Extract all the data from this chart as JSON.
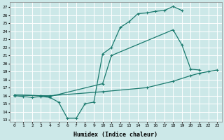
{
  "xlabel": "Humidex (Indice chaleur)",
  "background_color": "#cce8e8",
  "grid_color": "#ffffff",
  "line_color": "#1a7a6e",
  "xlim": [
    -0.5,
    23.5
  ],
  "ylim": [
    12.8,
    27.6
  ],
  "yticks": [
    13,
    14,
    15,
    16,
    17,
    18,
    19,
    20,
    21,
    22,
    23,
    24,
    25,
    26,
    27
  ],
  "xticks": [
    0,
    1,
    2,
    3,
    4,
    5,
    6,
    7,
    8,
    9,
    10,
    11,
    12,
    13,
    14,
    15,
    16,
    17,
    18,
    19,
    20,
    21,
    22,
    23
  ],
  "curve1_x": [
    0,
    1,
    2,
    3,
    4,
    5,
    6,
    7,
    8,
    9,
    10,
    11,
    12,
    13,
    14,
    15,
    16,
    17,
    18,
    19
  ],
  "curve1_y": [
    16.0,
    15.9,
    15.8,
    15.9,
    15.8,
    15.2,
    13.2,
    13.2,
    15.0,
    15.2,
    21.2,
    22.0,
    24.5,
    25.2,
    26.2,
    26.3,
    26.5,
    26.6,
    27.1,
    26.6
  ],
  "curve2_x": [
    0,
    3,
    4,
    10,
    11,
    18,
    19,
    20,
    21
  ],
  "curve2_y": [
    16.1,
    16.0,
    15.9,
    17.5,
    21.0,
    24.2,
    22.3,
    19.3,
    19.2
  ],
  "curve3_x": [
    0,
    3,
    4,
    10,
    15,
    18,
    20,
    21,
    22,
    23
  ],
  "curve3_y": [
    16.1,
    16.0,
    16.0,
    16.5,
    17.0,
    17.8,
    18.5,
    18.8,
    19.0,
    19.2
  ]
}
